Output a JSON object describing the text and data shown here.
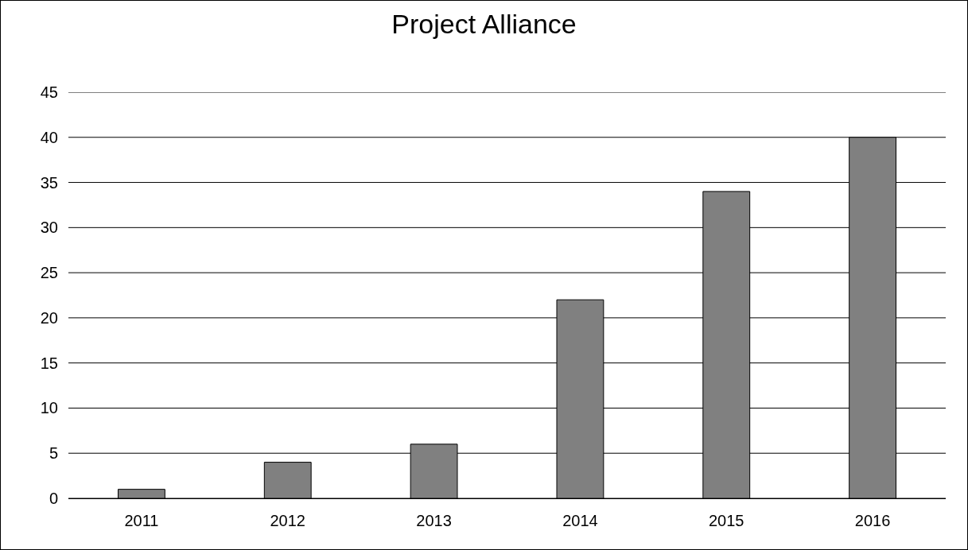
{
  "chart_data": {
    "type": "bar",
    "title": "Project Alliance",
    "categories": [
      "2011",
      "2012",
      "2013",
      "2014",
      "2015",
      "2016"
    ],
    "values": [
      1,
      4,
      6,
      22,
      34,
      40
    ],
    "color": "#808080",
    "ylim": [
      0,
      45
    ],
    "yticks": [
      0,
      5,
      10,
      15,
      20,
      25,
      30,
      35,
      40,
      45
    ],
    "grid": "y"
  }
}
